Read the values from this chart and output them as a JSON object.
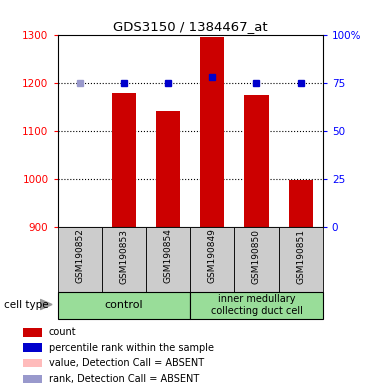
{
  "title": "GDS3150 / 1384467_at",
  "samples": [
    "GSM190852",
    "GSM190853",
    "GSM190854",
    "GSM190849",
    "GSM190850",
    "GSM190851"
  ],
  "bar_values": [
    900,
    1178,
    1140,
    1295,
    1175,
    997
  ],
  "bar_absent": [
    true,
    false,
    false,
    false,
    false,
    false
  ],
  "blue_dot_values": [
    75,
    75,
    75,
    78,
    75,
    75
  ],
  "blue_dot_absent": [
    true,
    false,
    false,
    false,
    false,
    false
  ],
  "control_label": "control",
  "treatment_label": "inner medullary\ncollecting duct cell",
  "cell_type_label": "cell type",
  "ylim_left": [
    900,
    1300
  ],
  "ylim_right": [
    0,
    100
  ],
  "yticks_left": [
    900,
    1000,
    1100,
    1200,
    1300
  ],
  "yticks_right": [
    0,
    25,
    50,
    75,
    100
  ],
  "bar_color_present": "#cc0000",
  "blue_color_present": "#0000cc",
  "blue_color_absent": "#9999cc",
  "pink_color_absent": "#ffbbbb",
  "control_group_color": "#99dd99",
  "treatment_group_color": "#99dd99",
  "sample_bg_color": "#cccccc",
  "legend_items": [
    {
      "color": "#cc0000",
      "label": "count"
    },
    {
      "color": "#0000cc",
      "label": "percentile rank within the sample"
    },
    {
      "color": "#ffbbbb",
      "label": "value, Detection Call = ABSENT"
    },
    {
      "color": "#9999cc",
      "label": "rank, Detection Call = ABSENT"
    }
  ],
  "figsize": [
    3.71,
    3.84
  ],
  "dpi": 100
}
